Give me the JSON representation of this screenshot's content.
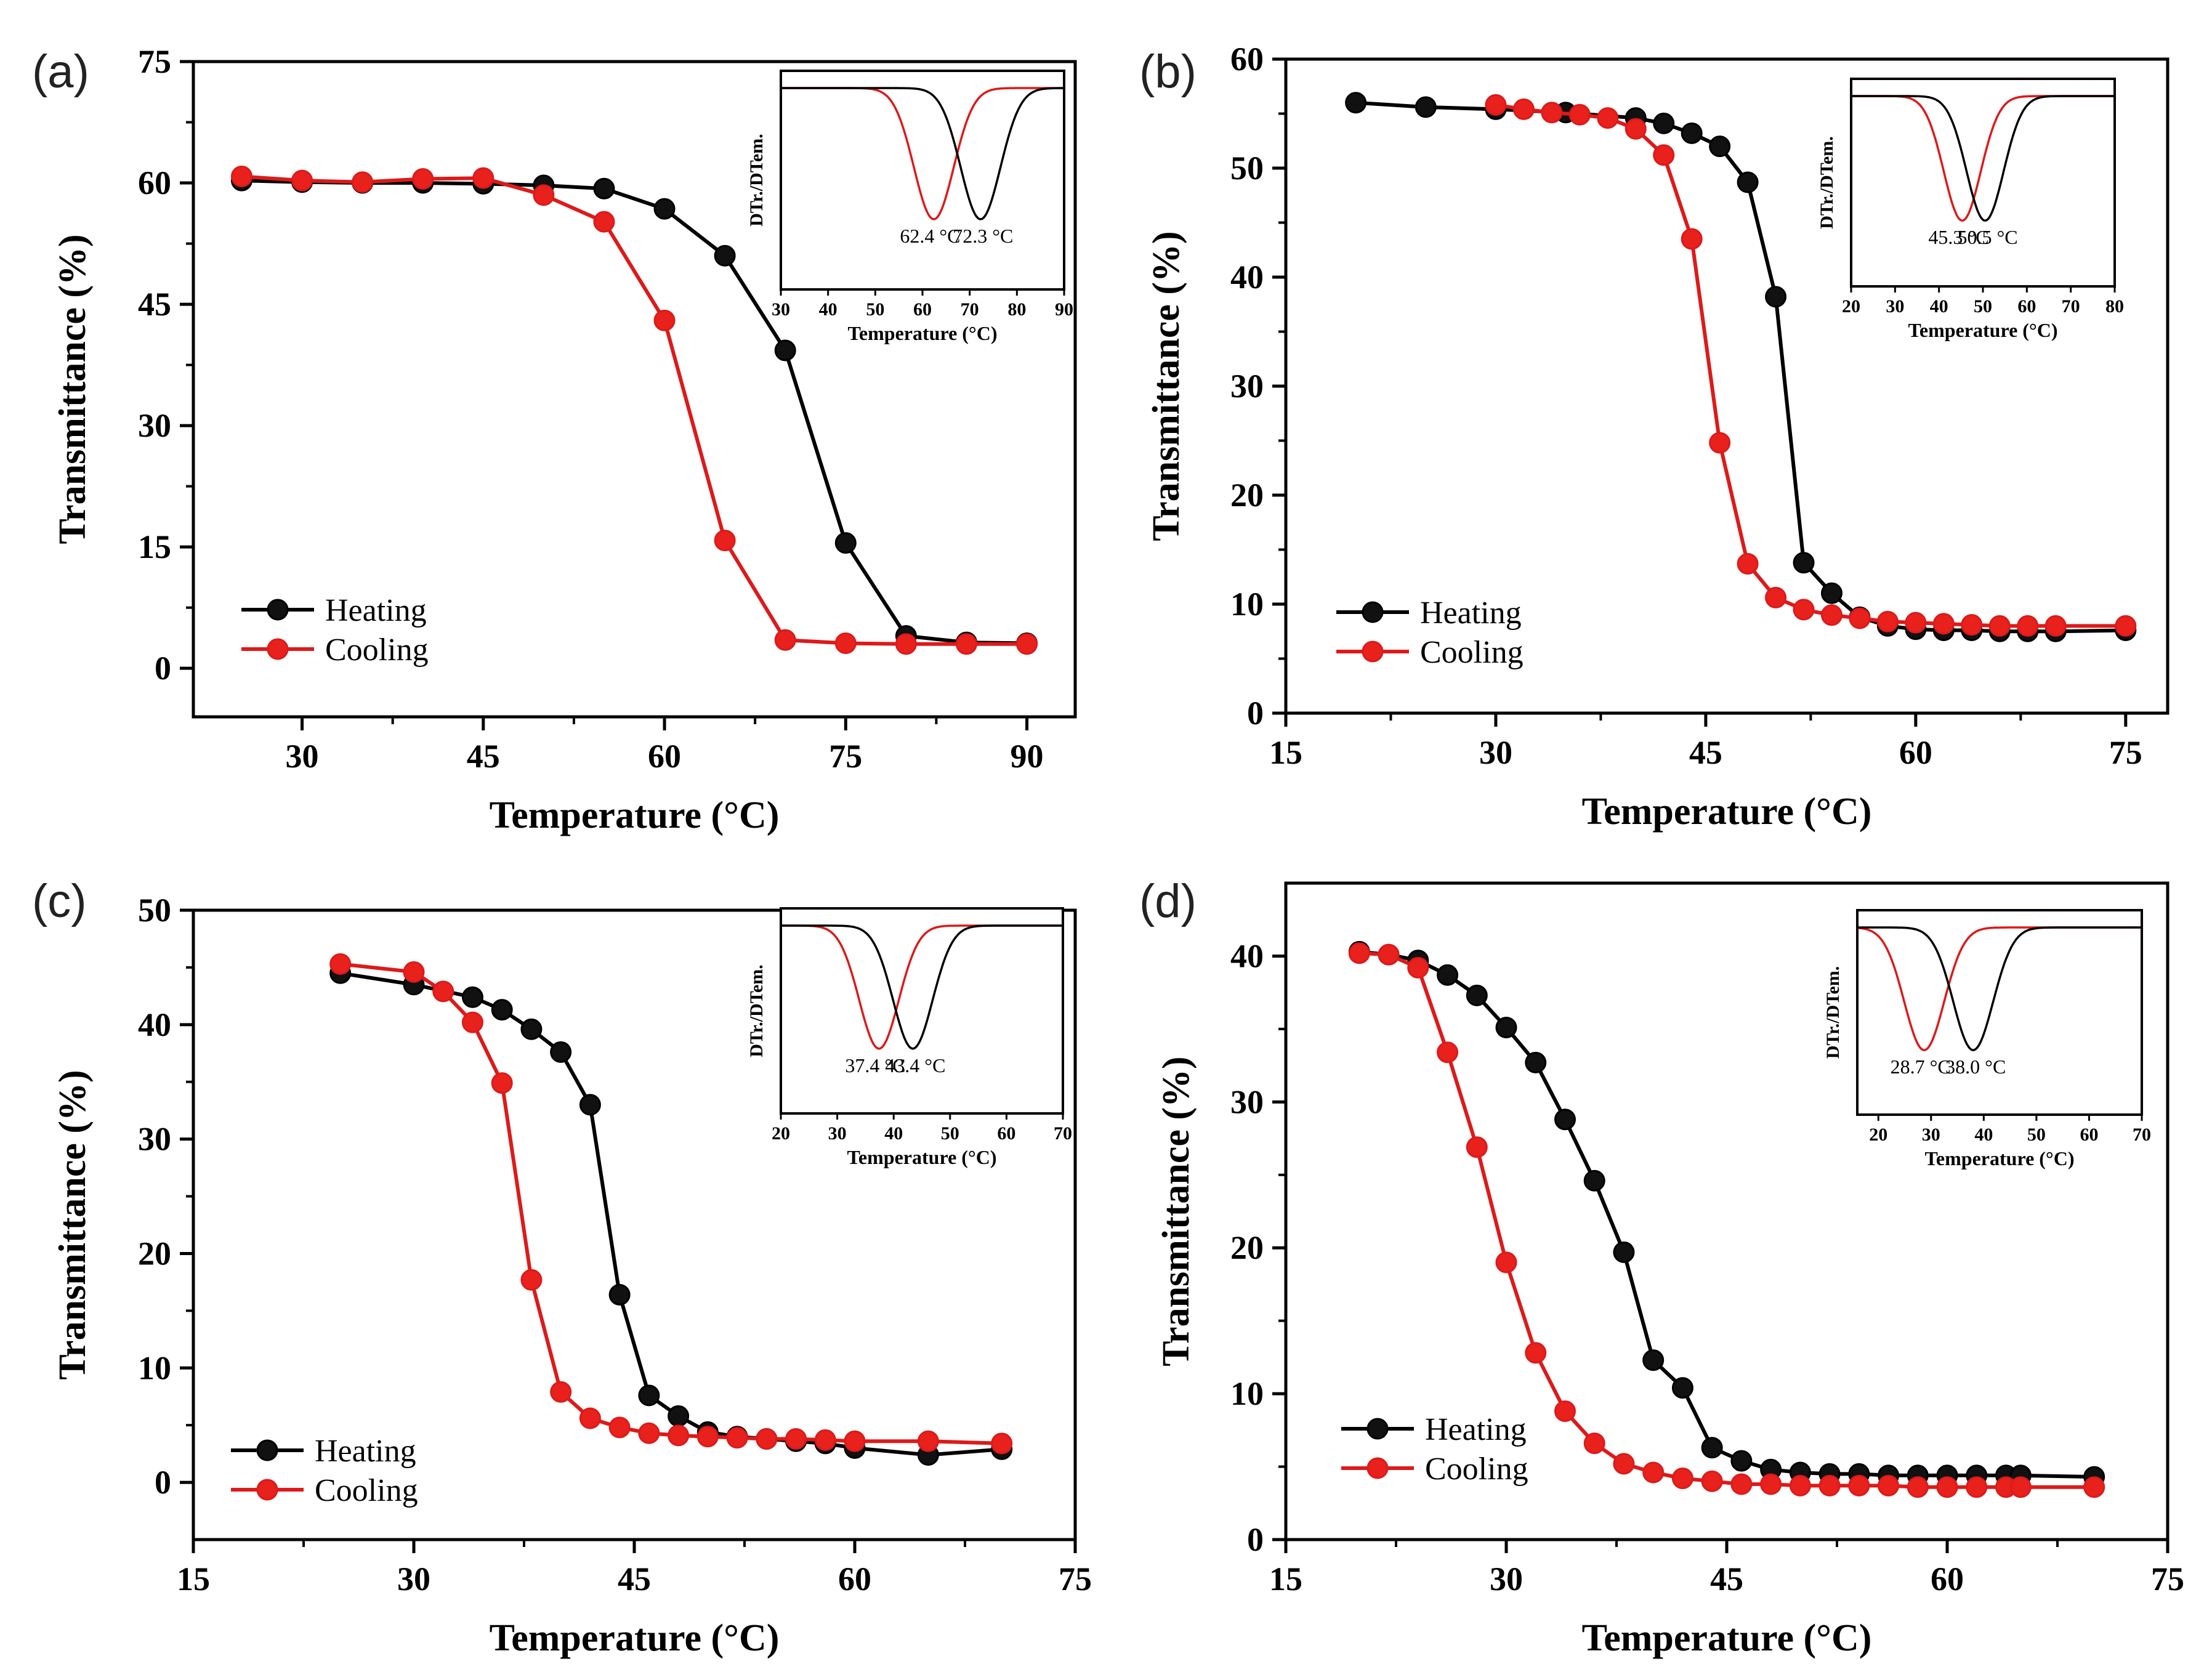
{
  "figure": {
    "panels": [
      "a",
      "b",
      "c",
      "d"
    ]
  },
  "colors": {
    "heating": "#000000",
    "cooling": "#dd1a1a",
    "frame": "#000000",
    "marker_fill_heating": "#111111",
    "marker_fill_cooling": "#e8211d"
  },
  "chart_data": [
    {
      "panel_label": "(a)",
      "type": "line",
      "xlabel": "Temperature (°C)",
      "ylabel": "Transmittance (%)",
      "xlim": [
        21,
        94
      ],
      "ylim": [
        -6,
        75
      ],
      "xticks": [
        30,
        45,
        60,
        75,
        90
      ],
      "yticks": [
        0,
        15,
        30,
        45,
        60,
        75
      ],
      "legend": {
        "position": "bottom-left",
        "entries": [
          "Heating",
          "Cooling"
        ]
      },
      "series": [
        {
          "name": "Heating",
          "x": [
            25,
            30,
            35,
            40,
            45,
            50,
            55,
            60,
            65,
            70,
            75,
            80,
            85,
            90
          ],
          "y": [
            60.3,
            60.1,
            60.0,
            60.0,
            59.9,
            59.7,
            59.3,
            56.8,
            51.0,
            39.3,
            15.5,
            4.0,
            3.2,
            3.1
          ]
        },
        {
          "name": "Cooling",
          "x": [
            25,
            30,
            35,
            40,
            45,
            50,
            55,
            60,
            65,
            70,
            75,
            80,
            85,
            90
          ],
          "y": [
            60.8,
            60.3,
            60.1,
            60.5,
            60.6,
            58.5,
            55.2,
            43.0,
            15.8,
            3.5,
            3.1,
            3.0,
            3.0,
            3.0
          ]
        }
      ],
      "inset": {
        "xlabel": "Temperature (°C)",
        "ylabel": "DTr./DTem.",
        "xlim": [
          30,
          90
        ],
        "xticks": [
          30,
          40,
          50,
          60,
          70,
          80,
          90
        ],
        "peaks": [
          {
            "series": "Cooling",
            "x": 62.4,
            "label": "62.4 °C"
          },
          {
            "series": "Heating",
            "x": 72.3,
            "label": "72.3 °C"
          }
        ]
      }
    },
    {
      "panel_label": "(b)",
      "type": "line",
      "xlabel": "Temperature (°C)",
      "ylabel": "Transmittance (%)",
      "xlim": [
        15,
        78
      ],
      "ylim": [
        0,
        60
      ],
      "xticks": [
        15,
        30,
        45,
        60,
        75
      ],
      "yticks": [
        0,
        10,
        20,
        30,
        40,
        50,
        60
      ],
      "legend": {
        "position": "bottom-left",
        "entries": [
          "Heating",
          "Cooling"
        ]
      },
      "series": [
        {
          "name": "Heating",
          "x": [
            20,
            25,
            30,
            35,
            40,
            42,
            44,
            46,
            48,
            50,
            52,
            54,
            56,
            58,
            60,
            62,
            64,
            66,
            68,
            70,
            75
          ],
          "y": [
            56.0,
            55.6,
            55.4,
            55.1,
            54.6,
            54.1,
            53.2,
            52.0,
            48.7,
            38.2,
            13.8,
            11.0,
            8.8,
            8.0,
            7.7,
            7.6,
            7.6,
            7.5,
            7.5,
            7.5,
            7.6
          ]
        },
        {
          "name": "Cooling",
          "x": [
            30,
            32,
            34,
            36,
            38,
            40,
            42,
            44,
            46,
            48,
            50,
            52,
            54,
            56,
            58,
            60,
            62,
            64,
            66,
            68,
            70,
            75
          ],
          "y": [
            55.8,
            55.4,
            55.1,
            54.9,
            54.6,
            53.6,
            51.2,
            43.5,
            24.8,
            13.7,
            10.6,
            9.5,
            9.0,
            8.7,
            8.4,
            8.3,
            8.2,
            8.1,
            8.0,
            8.0,
            8.0,
            8.0
          ]
        }
      ],
      "inset": {
        "xlabel": "Temperature (°C)",
        "ylabel": "DTr./DTem.",
        "xlim": [
          20,
          80
        ],
        "xticks": [
          20,
          30,
          40,
          50,
          60,
          70,
          80
        ],
        "peaks": [
          {
            "series": "Cooling",
            "x": 45.3,
            "label": "45.3 °C"
          },
          {
            "series": "Heating",
            "x": 50.5,
            "label": "50.5 °C"
          }
        ]
      }
    },
    {
      "panel_label": "(c)",
      "type": "line",
      "xlabel": "Temperature (°C)",
      "ylabel": "Transmittance (%)",
      "xlim": [
        15,
        75
      ],
      "ylim": [
        -5,
        50
      ],
      "xticks": [
        15,
        30,
        45,
        60,
        75
      ],
      "yticks": [
        0,
        10,
        20,
        30,
        40,
        50
      ],
      "legend": {
        "position": "bottom-left",
        "entries": [
          "Heating",
          "Cooling"
        ]
      },
      "series": [
        {
          "name": "Heating",
          "x": [
            25,
            30,
            34,
            36,
            38,
            40,
            42,
            44,
            46,
            48,
            50,
            52,
            54,
            56,
            58,
            60,
            65,
            70
          ],
          "y": [
            44.5,
            43.5,
            42.4,
            41.3,
            39.6,
            37.6,
            33.0,
            16.4,
            7.6,
            5.8,
            4.4,
            4.0,
            3.8,
            3.6,
            3.4,
            3.0,
            2.4,
            2.9
          ]
        },
        {
          "name": "Cooling",
          "x": [
            25,
            30,
            32,
            34,
            36,
            38,
            40,
            42,
            44,
            46,
            48,
            50,
            52,
            54,
            56,
            58,
            60,
            65,
            70
          ],
          "y": [
            45.3,
            44.6,
            42.9,
            40.2,
            34.9,
            17.7,
            7.9,
            5.6,
            4.8,
            4.3,
            4.1,
            4.0,
            3.9,
            3.8,
            3.8,
            3.7,
            3.6,
            3.6,
            3.4
          ]
        }
      ],
      "inset": {
        "xlabel": "Temperature (°C)",
        "ylabel": "DTr./DTem.",
        "xlim": [
          20,
          70
        ],
        "xticks": [
          20,
          30,
          40,
          50,
          60,
          70
        ],
        "peaks": [
          {
            "series": "Cooling",
            "x": 37.4,
            "label": "37.4 °C"
          },
          {
            "series": "Heating",
            "x": 43.4,
            "label": "43.4 °C"
          }
        ]
      }
    },
    {
      "panel_label": "(d)",
      "type": "line",
      "xlabel": "Temperature (°C)",
      "ylabel": "Transmittance (%)",
      "xlim": [
        15,
        75
      ],
      "ylim": [
        0,
        45
      ],
      "xticks": [
        15,
        30,
        45,
        60,
        75
      ],
      "yticks": [
        0,
        10,
        20,
        30,
        40
      ],
      "legend": {
        "position": "bottom-left",
        "entries": [
          "Heating",
          "Cooling"
        ]
      },
      "series": [
        {
          "name": "Heating",
          "x": [
            20,
            22,
            24,
            26,
            28,
            30,
            32,
            34,
            36,
            38,
            40,
            42,
            44,
            46,
            48,
            50,
            52,
            54,
            56,
            58,
            60,
            62,
            64,
            65,
            70
          ],
          "y": [
            40.3,
            40.1,
            39.7,
            38.7,
            37.3,
            35.1,
            32.7,
            28.8,
            24.6,
            19.7,
            12.3,
            10.4,
            6.3,
            5.4,
            4.8,
            4.6,
            4.5,
            4.5,
            4.4,
            4.4,
            4.4,
            4.4,
            4.4,
            4.4,
            4.3
          ]
        },
        {
          "name": "Cooling",
          "x": [
            20,
            22,
            24,
            26,
            28,
            30,
            32,
            34,
            36,
            38,
            40,
            42,
            44,
            46,
            48,
            50,
            52,
            54,
            56,
            58,
            60,
            62,
            64,
            65,
            70
          ],
          "y": [
            40.2,
            40.1,
            39.2,
            33.4,
            26.9,
            19.0,
            12.8,
            8.8,
            6.6,
            5.2,
            4.6,
            4.2,
            4.0,
            3.8,
            3.8,
            3.7,
            3.7,
            3.7,
            3.7,
            3.6,
            3.6,
            3.6,
            3.6,
            3.6,
            3.6
          ]
        }
      ],
      "inset": {
        "xlabel": "Temperature (°C)",
        "ylabel": "DTr./DTem.",
        "xlim": [
          16,
          70
        ],
        "xticks": [
          20,
          30,
          40,
          50,
          60,
          70
        ],
        "peaks": [
          {
            "series": "Cooling",
            "x": 28.7,
            "label": "28.7 °C"
          },
          {
            "series": "Heating",
            "x": 38.0,
            "label": "38.0 °C"
          }
        ]
      }
    }
  ]
}
